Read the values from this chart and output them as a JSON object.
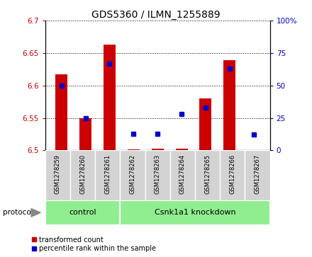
{
  "title": "GDS5360 / ILMN_1255889",
  "samples": [
    "GSM1278259",
    "GSM1278260",
    "GSM1278261",
    "GSM1278262",
    "GSM1278263",
    "GSM1278264",
    "GSM1278265",
    "GSM1278266",
    "GSM1278267"
  ],
  "red_values": [
    6.617,
    6.55,
    6.663,
    6.502,
    6.503,
    6.503,
    6.58,
    6.639,
    6.5
  ],
  "blue_values": [
    50,
    25,
    67,
    13,
    13,
    28,
    33,
    63,
    12
  ],
  "ylim_left": [
    6.5,
    6.7
  ],
  "ylim_right": [
    0,
    100
  ],
  "yticks_left": [
    6.5,
    6.55,
    6.6,
    6.65,
    6.7
  ],
  "yticks_right": [
    0,
    25,
    50,
    75,
    100
  ],
  "groups": [
    {
      "label": "control",
      "indices": [
        0,
        1,
        2
      ]
    },
    {
      "label": "Csnk1a1 knockdown",
      "indices": [
        3,
        4,
        5,
        6,
        7,
        8
      ]
    }
  ],
  "protocol_label": "protocol",
  "red_color": "#cc0000",
  "blue_color": "#0000cc",
  "group_bg_color": "#90ee90",
  "sample_bg_color": "#d3d3d3",
  "bar_width": 0.5,
  "legend_red": "transformed count",
  "legend_blue": "percentile rank within the sample",
  "title_fontsize": 10,
  "tick_fontsize": 7.5,
  "sample_fontsize": 6,
  "group_fontsize": 8
}
